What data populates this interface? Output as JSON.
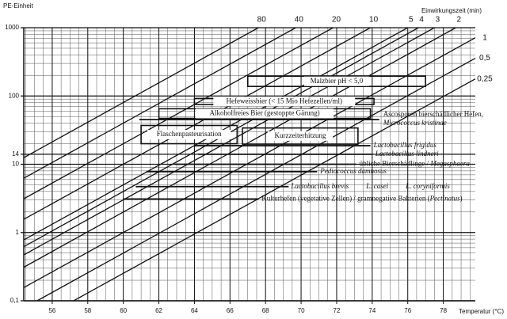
{
  "chart_data": {
    "type": "line",
    "y_label": "PE-Einheit",
    "x_label": "Temperatur (°C)",
    "time_label": "Einwirkungszeit (min)",
    "log_y": true,
    "grid": true,
    "color": "#111111",
    "xlim": [
      54.4,
      79.8
    ],
    "xticks": [
      56,
      58,
      60,
      62,
      64,
      66,
      68,
      70,
      72,
      74,
      76,
      78
    ],
    "ylim": [
      0.1,
      1000
    ],
    "yticks": [
      {
        "value": 0.1,
        "label": "0,1"
      },
      1,
      10,
      14,
      100,
      1000
    ],
    "series": [
      {
        "name": "80",
        "x": [
          54.4,
          67.6
        ],
        "values": [
          12.5,
          1000
        ]
      },
      {
        "name": "40",
        "x": [
          54.4,
          69.7
        ],
        "values": [
          6.24,
          1000
        ]
      },
      {
        "name": "20",
        "x": [
          54.4,
          71.8
        ],
        "values": [
          3.12,
          1000
        ]
      },
      {
        "name": "10",
        "x": [
          54.4,
          73.9
        ],
        "values": [
          1.56,
          1000
        ]
      },
      {
        "name": "5",
        "x": [
          54.4,
          76.0
        ],
        "values": [
          0.78,
          1000
        ]
      },
      {
        "name": "4",
        "x": [
          54.4,
          76.6
        ],
        "values": [
          0.62,
          1000
        ]
      },
      {
        "name": "3",
        "x": [
          54.4,
          77.5
        ],
        "values": [
          0.47,
          1000
        ]
      },
      {
        "name": "2",
        "x": [
          54.4,
          78.7
        ],
        "values": [
          0.31,
          1000
        ]
      },
      {
        "name": "1",
        "x": [
          54.4,
          79.8
        ],
        "values": [
          0.156,
          713
        ]
      },
      {
        "name": "0,5",
        "x": [
          55.15,
          79.8
        ],
        "values": [
          0.1,
          357
        ]
      },
      {
        "name": "0,25",
        "x": [
          57.2,
          79.8
        ],
        "values": [
          0.1,
          178
        ]
      }
    ],
    "boxes": [
      {
        "label": "Malzbier pH < 5,0",
        "temp": [
          67.0,
          77.0
        ],
        "pe": [
          138,
          195
        ]
      },
      {
        "label": "Hefeweissbier (< 15 Mio Hefezellen/ml)",
        "temp": [
          64.0,
          74.1
        ],
        "pe": [
          75,
          92
        ]
      },
      {
        "label": "Alkoholfreies Bier (gestoppte Gärung)",
        "temp": [
          62.0,
          73.9
        ],
        "pe": [
          47,
          65
        ]
      },
      {
        "label": "Flaschenpasteurisation",
        "temp": [
          61.0,
          66.4
        ],
        "pe": [
          20,
          37
        ]
      },
      {
        "label": "Kurzzeiterhitzung",
        "temp": [
          66.7,
          73.2
        ],
        "pe": [
          19.7,
          34
        ]
      }
    ],
    "ranges": [
      {
        "parts": [
          {
            "text": "Ascosporen bierschädlicher Hefen,",
            "italic": false
          },
          {
            "text": "Micrococcus kristinae",
            "italic": true
          }
        ],
        "temp": [
          60.9,
          74.4
        ],
        "pe": 45,
        "stacked": true
      },
      {
        "parts": [
          {
            "text": "Lactobacillus frigidus",
            "italic": true
          }
        ],
        "temp": [
          64.0,
          73.9
        ],
        "pe": 18.7
      },
      {
        "parts": [
          {
            "text": "Lactobacillus lindneri",
            "italic": true
          }
        ],
        "temp": [
          64.2,
          74.0
        ],
        "pe": 14
      },
      {
        "parts": [
          {
            "text": "übliche Bierschädlinge / ",
            "italic": false
          },
          {
            "text": "Megasphaera",
            "italic": true
          }
        ],
        "temp": [
          62.9,
          73.1
        ],
        "pe": 10
      },
      {
        "parts": [
          {
            "text": "Pediococcus damnosus",
            "italic": true
          }
        ],
        "temp": [
          61.3,
          70.9
        ],
        "pe": 7.8
      },
      {
        "parts": [
          {
            "text": "Lactobacillus brevis",
            "italic": true
          },
          {
            "text": "L. casei",
            "italic": true
          },
          {
            "text": "L. coryniformis",
            "italic": true
          }
        ],
        "temp": [
          60.7,
          69.3
        ],
        "pe": 4.7,
        "spread": true
      },
      {
        "parts": [
          {
            "text": "Kulturhefen (vegetative Zellen) / gramnegative Bakterien (",
            "italic": false
          },
          {
            "text": "Pectinatus",
            "italic": true
          },
          {
            "text": ")",
            "italic": false
          }
        ],
        "temp": [
          60.0,
          67.6
        ],
        "pe": 3.1
      }
    ]
  }
}
